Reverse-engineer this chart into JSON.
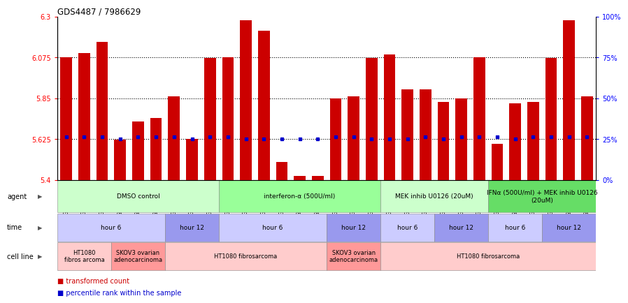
{
  "title": "GDS4487 / 7986629",
  "samples": [
    "GSM768611",
    "GSM768612",
    "GSM768613",
    "GSM768635",
    "GSM768636",
    "GSM768637",
    "GSM768614",
    "GSM768615",
    "GSM768616",
    "GSM768617",
    "GSM768618",
    "GSM768619",
    "GSM768638",
    "GSM768639",
    "GSM768640",
    "GSM768620",
    "GSM768621",
    "GSM768622",
    "GSM768623",
    "GSM768624",
    "GSM768625",
    "GSM768626",
    "GSM768627",
    "GSM768628",
    "GSM768629",
    "GSM768630",
    "GSM768631",
    "GSM768632",
    "GSM768633",
    "GSM768634"
  ],
  "bar_values": [
    6.075,
    6.1,
    6.16,
    5.62,
    5.72,
    5.74,
    5.86,
    5.625,
    6.07,
    6.075,
    6.28,
    6.22,
    5.5,
    5.42,
    5.42,
    5.85,
    5.86,
    6.07,
    6.09,
    5.9,
    5.9,
    5.83,
    5.85,
    6.075,
    5.6,
    5.82,
    5.83,
    6.07,
    6.28,
    5.86
  ],
  "blue_values": [
    5.635,
    5.635,
    5.635,
    5.625,
    5.635,
    5.635,
    5.635,
    5.625,
    5.635,
    5.635,
    5.625,
    5.625,
    5.625,
    5.625,
    5.625,
    5.635,
    5.635,
    5.625,
    5.625,
    5.625,
    5.635,
    5.625,
    5.635,
    5.635,
    5.635,
    5.625,
    5.635,
    5.635,
    5.635,
    5.635
  ],
  "ylim_min": 5.4,
  "ylim_max": 6.3,
  "yticks_left": [
    5.4,
    5.625,
    5.85,
    6.075,
    6.3
  ],
  "yticks_right": [
    0,
    25,
    50,
    75,
    100
  ],
  "hlines": [
    5.625,
    5.85,
    6.075
  ],
  "bar_color": "#cc0000",
  "blue_color": "#0000cc",
  "agent_groups": [
    {
      "label": "DMSO control",
      "start": 0,
      "end": 9,
      "color": "#ccffcc"
    },
    {
      "label": "interferon-α (500U/ml)",
      "start": 9,
      "end": 18,
      "color": "#99ff99"
    },
    {
      "label": "MEK inhib U0126 (20uM)",
      "start": 18,
      "end": 24,
      "color": "#ccffcc"
    },
    {
      "label": "IFNα (500U/ml) + MEK inhib U0126\n(20uM)",
      "start": 24,
      "end": 30,
      "color": "#66dd66"
    }
  ],
  "time_groups": [
    {
      "label": "hour 6",
      "start": 0,
      "end": 6,
      "color": "#ccccff"
    },
    {
      "label": "hour 12",
      "start": 6,
      "end": 9,
      "color": "#9999ee"
    },
    {
      "label": "hour 6",
      "start": 9,
      "end": 15,
      "color": "#ccccff"
    },
    {
      "label": "hour 12",
      "start": 15,
      "end": 18,
      "color": "#9999ee"
    },
    {
      "label": "hour 6",
      "start": 18,
      "end": 21,
      "color": "#ccccff"
    },
    {
      "label": "hour 12",
      "start": 21,
      "end": 24,
      "color": "#9999ee"
    },
    {
      "label": "hour 6",
      "start": 24,
      "end": 27,
      "color": "#ccccff"
    },
    {
      "label": "hour 12",
      "start": 27,
      "end": 30,
      "color": "#9999ee"
    }
  ],
  "cell_groups": [
    {
      "label": "HT1080\nfibros arcoma",
      "start": 0,
      "end": 3,
      "color": "#ffcccc"
    },
    {
      "label": "SKOV3 ovarian\nadenocarcinoma",
      "start": 3,
      "end": 6,
      "color": "#ff9999"
    },
    {
      "label": "HT1080 fibrosarcoma",
      "start": 6,
      "end": 15,
      "color": "#ffcccc"
    },
    {
      "label": "SKOV3 ovarian\nadenocarcinoma",
      "start": 15,
      "end": 18,
      "color": "#ff9999"
    },
    {
      "label": "HT1080 fibrosarcoma",
      "start": 18,
      "end": 30,
      "color": "#ffcccc"
    }
  ],
  "row_labels": [
    "agent",
    "time",
    "cell line"
  ],
  "legend": [
    {
      "label": "transformed count",
      "color": "#cc0000"
    },
    {
      "label": "percentile rank within the sample",
      "color": "#0000cc"
    }
  ]
}
